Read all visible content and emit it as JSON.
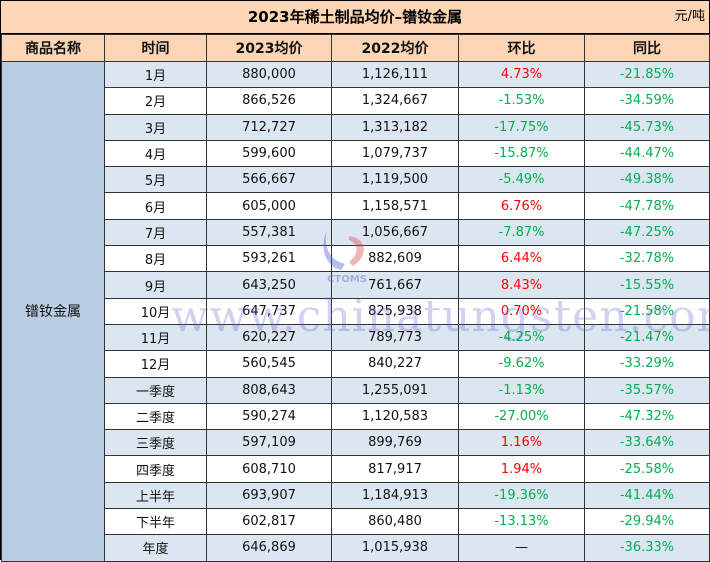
{
  "title": "2023年稀土制品均价–镨钕金属",
  "unit": "元/吨",
  "headers": [
    "商品名称",
    "时间",
    "2023均价",
    "2022均价",
    "环比",
    "同比"
  ],
  "product": "镨钕金属",
  "watermark": "www.chinatungsten.com",
  "logo_text": "CTOMS",
  "colors": {
    "header_bg": "#fcd5b4",
    "row_alt": "#dce6f1",
    "name_bg": "#b8cce4",
    "up": "#ff0000",
    "down": "#00b050"
  },
  "rows": [
    {
      "period": "1月",
      "avg2023": "880,000",
      "avg2022": "1,126,111",
      "mom": "4.73%",
      "yoy": "-21.85%"
    },
    {
      "period": "2月",
      "avg2023": "866,526",
      "avg2022": "1,324,667",
      "mom": "-1.53%",
      "yoy": "-34.59%"
    },
    {
      "period": "3月",
      "avg2023": "712,727",
      "avg2022": "1,313,182",
      "mom": "-17.75%",
      "yoy": "-45.73%"
    },
    {
      "period": "4月",
      "avg2023": "599,600",
      "avg2022": "1,079,737",
      "mom": "-15.87%",
      "yoy": "-44.47%"
    },
    {
      "period": "5月",
      "avg2023": "566,667",
      "avg2022": "1,119,500",
      "mom": "-5.49%",
      "yoy": "-49.38%"
    },
    {
      "period": "6月",
      "avg2023": "605,000",
      "avg2022": "1,158,571",
      "mom": "6.76%",
      "yoy": "-47.78%"
    },
    {
      "period": "7月",
      "avg2023": "557,381",
      "avg2022": "1,056,667",
      "mom": "-7.87%",
      "yoy": "-47.25%"
    },
    {
      "period": "8月",
      "avg2023": "593,261",
      "avg2022": "882,609",
      "mom": "6.44%",
      "yoy": "-32.78%"
    },
    {
      "period": "9月",
      "avg2023": "643,250",
      "avg2022": "761,667",
      "mom": "8.43%",
      "yoy": "-15.55%"
    },
    {
      "period": "10月",
      "avg2023": "647,737",
      "avg2022": "825,938",
      "mom": "0.70%",
      "yoy": "-21.58%"
    },
    {
      "period": "11月",
      "avg2023": "620,227",
      "avg2022": "789,773",
      "mom": "-4.25%",
      "yoy": "-21.47%"
    },
    {
      "period": "12月",
      "avg2023": "560,545",
      "avg2022": "840,227",
      "mom": "-9.62%",
      "yoy": "-33.29%"
    },
    {
      "period": "一季度",
      "avg2023": "808,643",
      "avg2022": "1,255,091",
      "mom": "-1.13%",
      "yoy": "-35.57%"
    },
    {
      "period": "二季度",
      "avg2023": "590,274",
      "avg2022": "1,120,583",
      "mom": "-27.00%",
      "yoy": "-47.32%"
    },
    {
      "period": "三季度",
      "avg2023": "597,109",
      "avg2022": "899,769",
      "mom": "1.16%",
      "yoy": "-33.64%"
    },
    {
      "period": "四季度",
      "avg2023": "608,710",
      "avg2022": "817,917",
      "mom": "1.94%",
      "yoy": "-25.58%"
    },
    {
      "period": "上半年",
      "avg2023": "693,907",
      "avg2022": "1,184,913",
      "mom": "-19.36%",
      "yoy": "-41.44%"
    },
    {
      "period": "下半年",
      "avg2023": "602,817",
      "avg2022": "860,480",
      "mom": "-13.13%",
      "yoy": "-29.94%"
    },
    {
      "period": "年度",
      "avg2023": "646,869",
      "avg2022": "1,015,938",
      "mom": "—",
      "yoy": "-36.33%"
    }
  ]
}
